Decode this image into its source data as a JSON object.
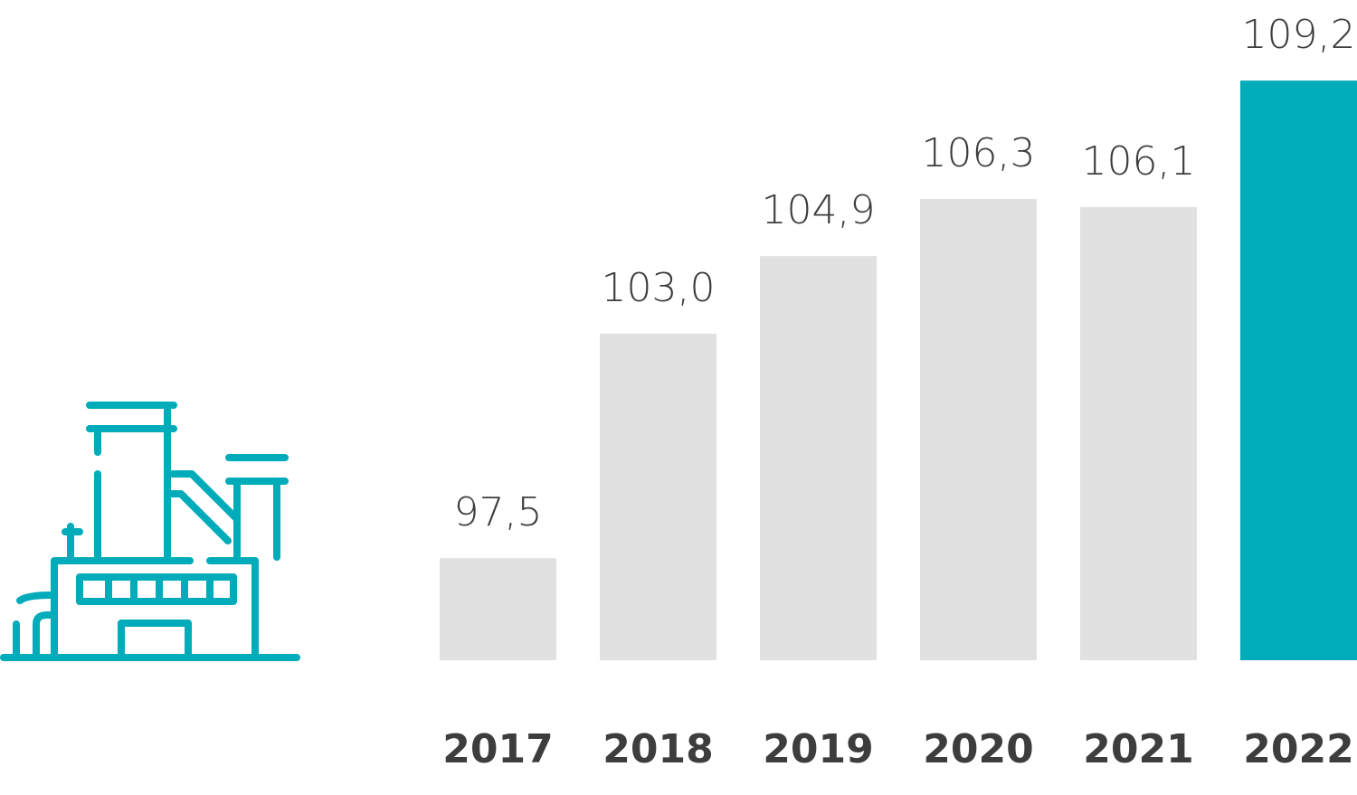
{
  "chart_data": {
    "type": "bar",
    "categories": [
      "2017",
      "2018",
      "2019",
      "2020",
      "2021",
      "2022"
    ],
    "values": [
      97.5,
      103.0,
      104.9,
      106.3,
      106.1,
      109.2
    ],
    "value_labels": [
      "97,5",
      "103,0",
      "104,9",
      "106,3",
      "106,1",
      "109,2"
    ],
    "colors": [
      "#e1e1e1",
      "#e1e1e1",
      "#e1e1e1",
      "#e1e1e1",
      "#e1e1e1",
      "#00abba"
    ],
    "ylim": [
      95,
      110
    ]
  }
}
